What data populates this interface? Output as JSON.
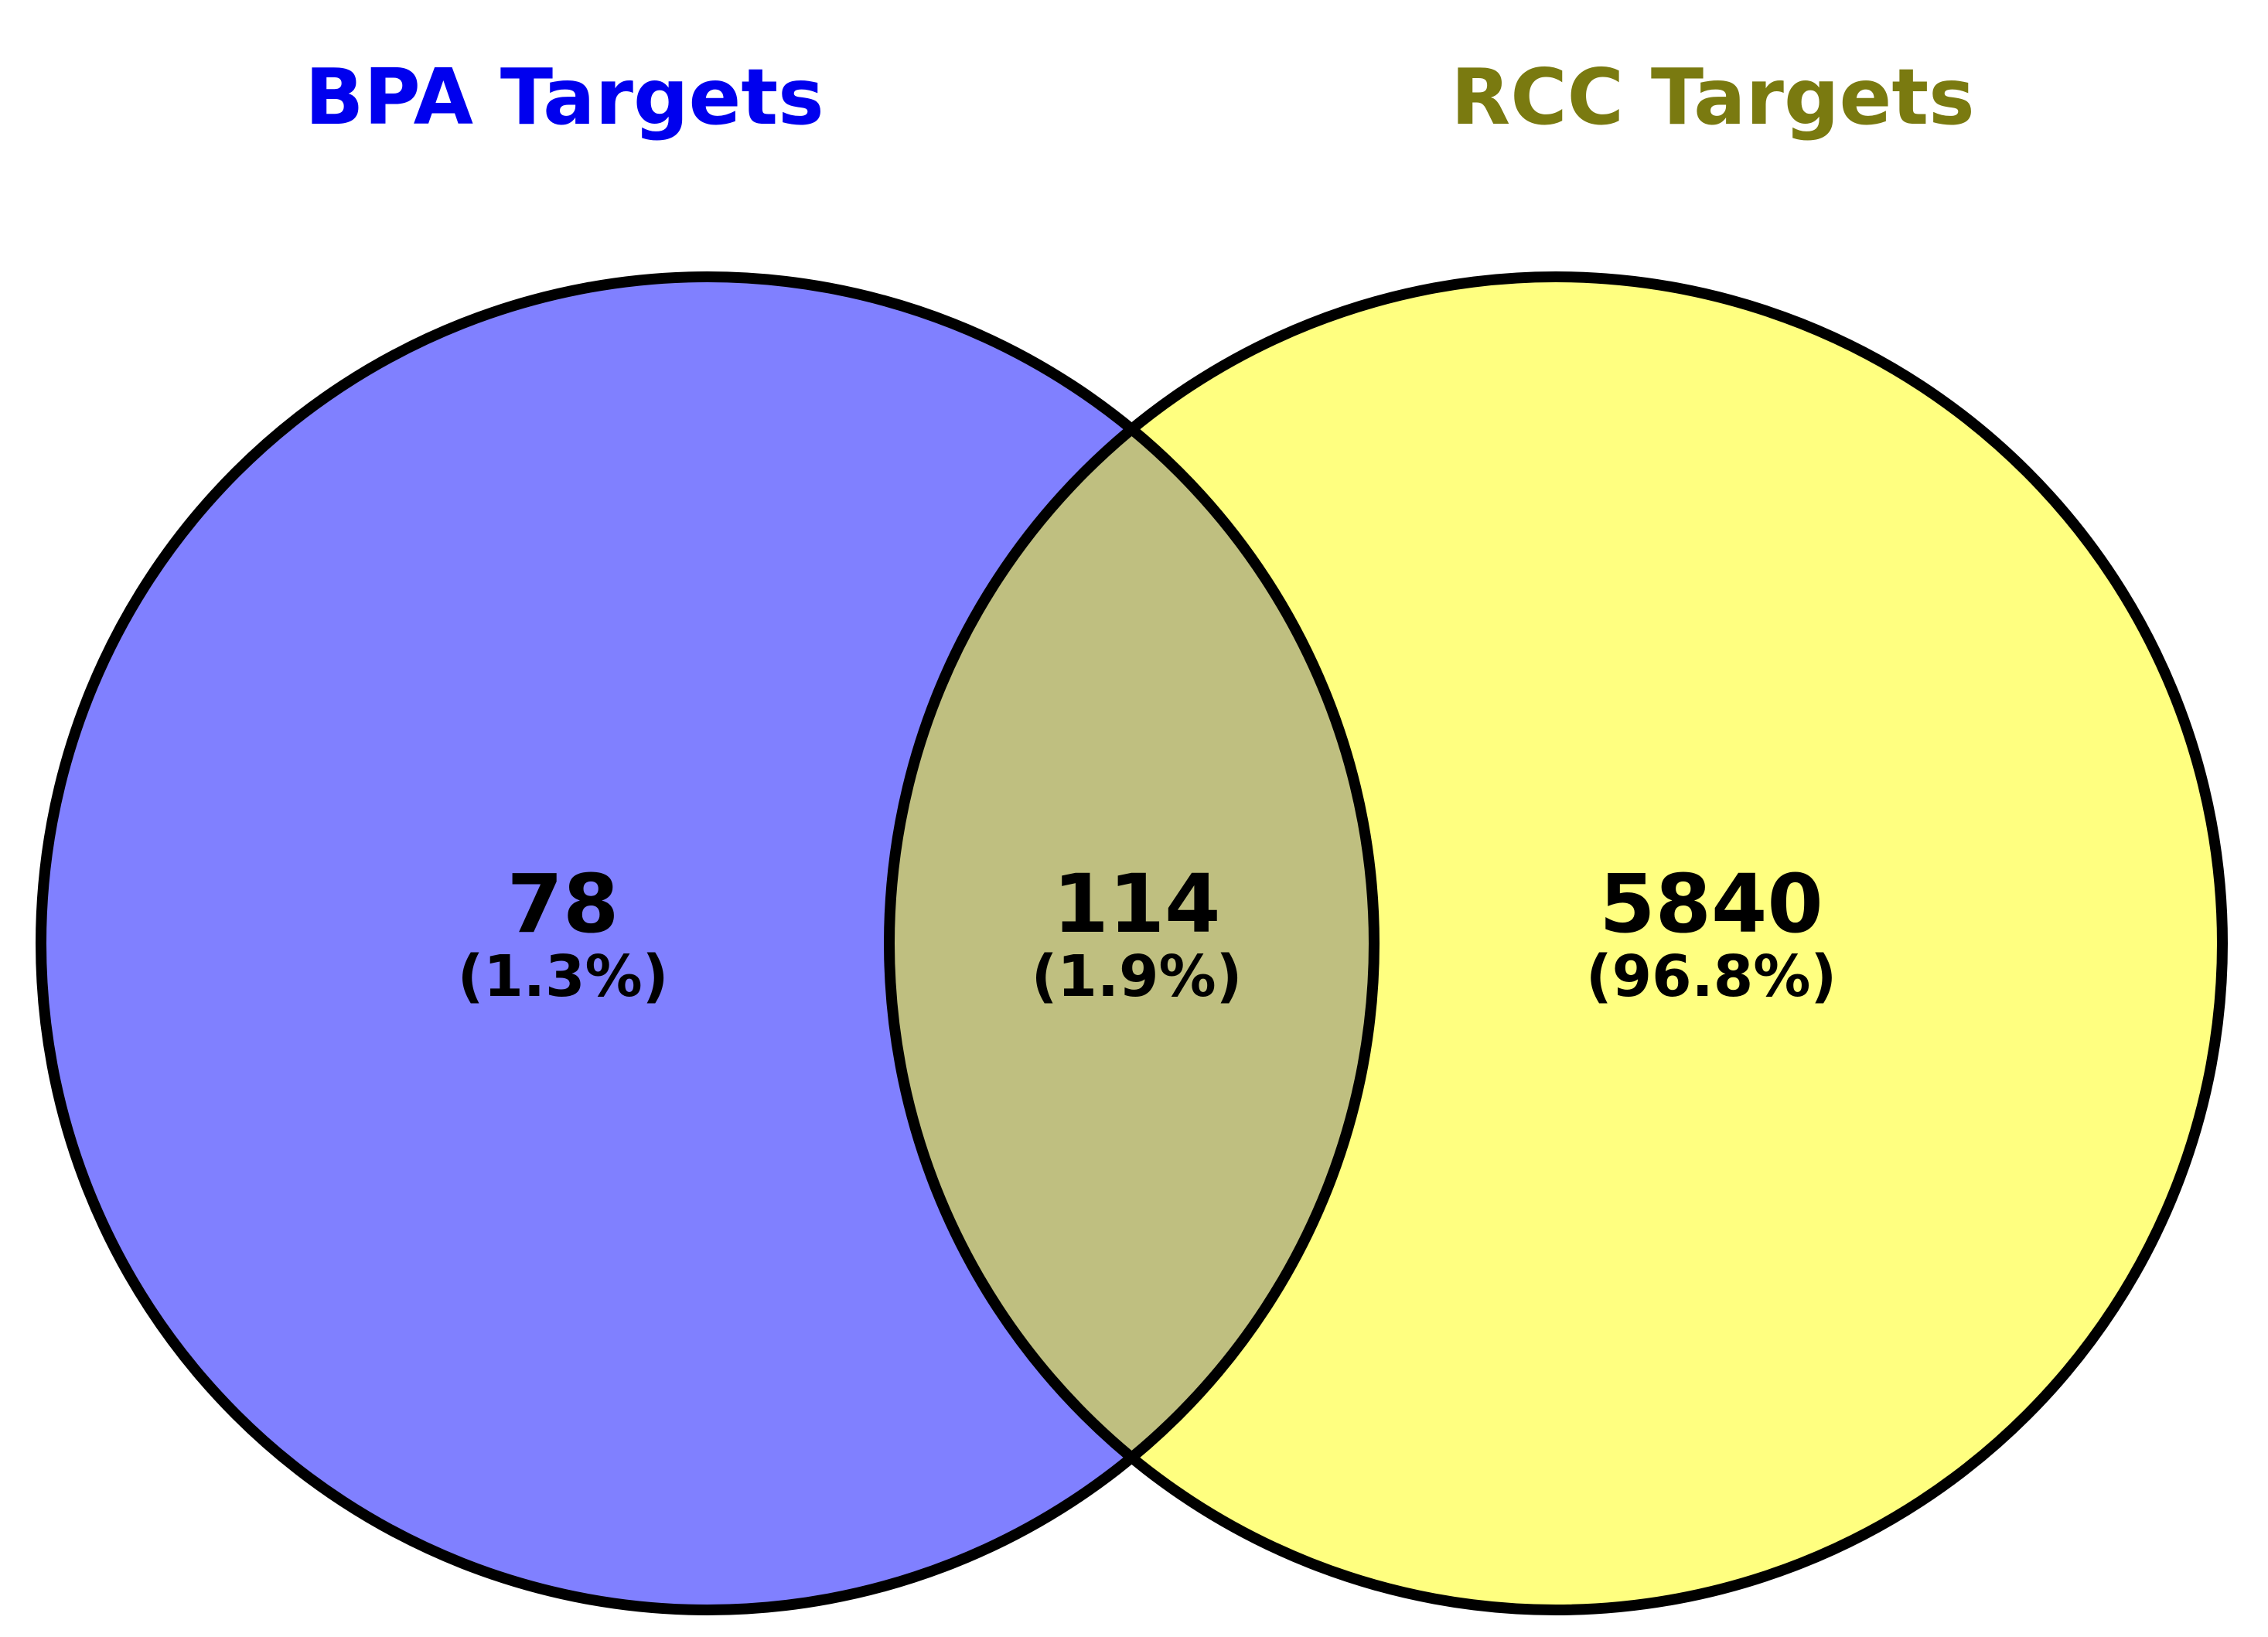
{
  "venn": {
    "sets": [
      {
        "name": "BPA Targets",
        "color": "#0000ee",
        "fill": "#8080ff"
      },
      {
        "name": "RCC Targets",
        "color": "#7a7a10",
        "fill": "#ffff80"
      }
    ],
    "overlap_fill": "#bfbf80",
    "outline_color": "#000000",
    "regions": {
      "left_only": {
        "count": "78",
        "percent": "(1.3%)"
      },
      "intersection": {
        "count": "114",
        "percent": "(1.9%)"
      },
      "right_only": {
        "count": "5840",
        "percent": "(96.8%)"
      }
    }
  }
}
